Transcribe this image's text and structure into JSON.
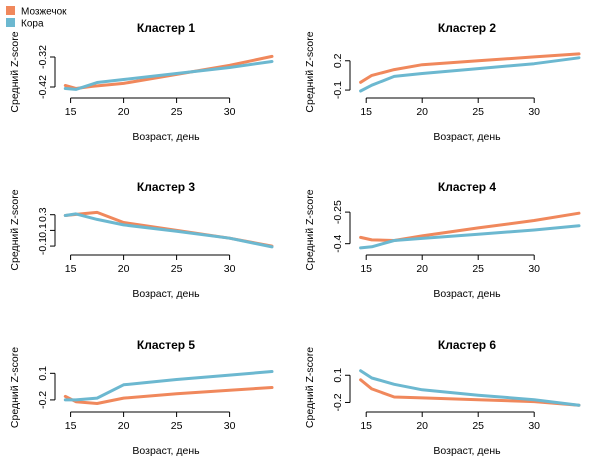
{
  "legend": {
    "position": "top-left",
    "items": [
      {
        "name": "Мозжечок",
        "color": "#f0885c"
      },
      {
        "name": "Кора",
        "color": "#6cb8d0"
      }
    ]
  },
  "chart_data": [
    {
      "type": "line",
      "title": "Кластер 1",
      "xlabel": "Возраст, день",
      "ylabel": "Средний Z-score",
      "xlim": [
        14,
        34
      ],
      "ylim": [
        -0.44,
        -0.3
      ],
      "xticks": [
        15,
        20,
        25,
        30
      ],
      "yticks": [
        -0.42,
        -0.32
      ],
      "series": [
        {
          "name": "Мозжечок",
          "x": [
            14.5,
            15.5,
            17,
            20,
            25,
            30,
            34
          ],
          "y": [
            -0.415,
            -0.425,
            -0.418,
            -0.408,
            -0.378,
            -0.348,
            -0.318
          ]
        },
        {
          "name": "Кора",
          "x": [
            14.5,
            15.5,
            17.5,
            20,
            25,
            30,
            34
          ],
          "y": [
            -0.425,
            -0.428,
            -0.405,
            -0.395,
            -0.375,
            -0.355,
            -0.335
          ]
        }
      ]
    },
    {
      "type": "line",
      "title": "Кластер 2",
      "xlabel": "Возраст, день",
      "ylabel": "Средний Z-score",
      "xlim": [
        14,
        34
      ],
      "ylim": [
        -0.13,
        0.3
      ],
      "xticks": [
        15,
        20,
        25,
        30
      ],
      "yticks": [
        -0.1,
        0.2
      ],
      "series": [
        {
          "name": "Мозжечок",
          "x": [
            14.5,
            15.5,
            17.5,
            20,
            25,
            30,
            34
          ],
          "y": [
            -0.02,
            0.05,
            0.11,
            0.16,
            0.2,
            0.24,
            0.27
          ]
        },
        {
          "name": "Кора",
          "x": [
            14.5,
            15.5,
            17.5,
            20,
            25,
            30,
            34
          ],
          "y": [
            -0.11,
            -0.05,
            0.04,
            0.07,
            0.12,
            0.17,
            0.23
          ]
        }
      ]
    },
    {
      "type": "line",
      "title": "Кластер 3",
      "xlabel": "Возраст, день",
      "ylabel": "Средний Z-score",
      "xlim": [
        14,
        34
      ],
      "ylim": [
        -0.15,
        0.36
      ],
      "xticks": [
        15,
        20,
        25,
        30
      ],
      "yticks": [
        -0.1,
        0.1,
        0.3
      ],
      "series": [
        {
          "name": "Мозжечок",
          "x": [
            14.5,
            16,
            17.5,
            20,
            25,
            30,
            34
          ],
          "y": [
            0.29,
            0.31,
            0.33,
            0.2,
            0.1,
            0.0,
            -0.1
          ]
        },
        {
          "name": "Кора",
          "x": [
            14.5,
            15.5,
            17.5,
            20,
            25,
            30,
            34
          ],
          "y": [
            0.29,
            0.31,
            0.24,
            0.17,
            0.09,
            0.0,
            -0.11
          ]
        }
      ]
    },
    {
      "type": "line",
      "title": "Кластер 4",
      "xlabel": "Возраст, день",
      "ylabel": "Средний Z-score",
      "xlim": [
        14,
        34
      ],
      "ylim": [
        -0.43,
        -0.24
      ],
      "xticks": [
        15,
        20,
        25,
        30
      ],
      "yticks": [
        -0.4,
        -0.25
      ],
      "series": [
        {
          "name": "Мозжечок",
          "x": [
            14.5,
            15.5,
            17.5,
            20,
            25,
            30,
            34
          ],
          "y": [
            -0.37,
            -0.382,
            -0.385,
            -0.363,
            -0.325,
            -0.29,
            -0.255
          ]
        },
        {
          "name": "Кора",
          "x": [
            14.5,
            15.5,
            17.5,
            20,
            25,
            30,
            34
          ],
          "y": [
            -0.42,
            -0.415,
            -0.385,
            -0.375,
            -0.355,
            -0.335,
            -0.315
          ]
        }
      ]
    },
    {
      "type": "line",
      "title": "Кластер 5",
      "xlabel": "Возраст, день",
      "ylabel": "Средний Z-score",
      "xlim": [
        14,
        34
      ],
      "ylim": [
        -0.28,
        0.16
      ],
      "xticks": [
        15,
        20,
        25,
        30
      ],
      "yticks": [
        -0.2,
        0.1
      ],
      "series": [
        {
          "name": "Мозжечок",
          "x": [
            14.5,
            15.5,
            17.5,
            20,
            25,
            30,
            34
          ],
          "y": [
            -0.16,
            -0.22,
            -0.24,
            -0.18,
            -0.13,
            -0.09,
            -0.06
          ]
        },
        {
          "name": "Кора",
          "x": [
            14.5,
            15.5,
            17.5,
            20,
            25,
            30,
            34
          ],
          "y": [
            -0.2,
            -0.2,
            -0.18,
            -0.03,
            0.03,
            0.08,
            0.12
          ]
        }
      ]
    },
    {
      "type": "line",
      "title": "Кластер 6",
      "xlabel": "Возраст, день",
      "ylabel": "Средний Z-score",
      "xlim": [
        14,
        34
      ],
      "ylim": [
        -0.25,
        0.18
      ],
      "xticks": [
        15,
        20,
        25,
        30
      ],
      "yticks": [
        -0.2,
        0.1
      ],
      "series": [
        {
          "name": "Мозжечок",
          "x": [
            14.5,
            15.5,
            17.5,
            20,
            25,
            30,
            34
          ],
          "y": [
            0.05,
            -0.05,
            -0.14,
            -0.15,
            -0.17,
            -0.19,
            -0.23
          ]
        },
        {
          "name": "Кора",
          "x": [
            14.5,
            15.5,
            17.5,
            20,
            25,
            30,
            34
          ],
          "y": [
            0.15,
            0.07,
            0.0,
            -0.06,
            -0.12,
            -0.17,
            -0.23
          ]
        }
      ]
    }
  ]
}
